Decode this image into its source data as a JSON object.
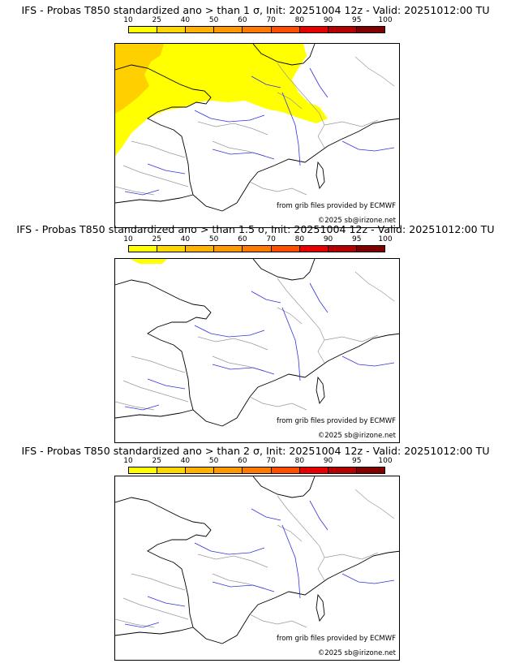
{
  "colorbar": {
    "ticks": [
      "10",
      "25",
      "40",
      "50",
      "60",
      "70",
      "80",
      "90",
      "95",
      "100"
    ],
    "colors": [
      "#ffff00",
      "#ffd700",
      "#ffb300",
      "#ff9900",
      "#ff7a00",
      "#ff4d00",
      "#e60000",
      "#b30000",
      "#800000"
    ]
  },
  "colors": {
    "land_outline": "#000000",
    "borders": "#999999",
    "rivers": "#3333dd"
  },
  "panels": [
    {
      "title": "IFS - Probas T850  standardized ano > than 1 σ, Init: 20251004 12z - Valid: 20251012:00 TU",
      "threshold": "1 σ",
      "probability_levels_present": [
        "10",
        "25"
      ]
    },
    {
      "title": "IFS - Probas T850  standardized ano > than 1.5 σ, Init: 20251004 12z - Valid: 20251012:00 TU",
      "threshold": "1.5 σ",
      "probability_levels_present": [
        "10"
      ]
    },
    {
      "title": "IFS - Probas T850  standardized ano > than 2 σ, Init: 20251004 12z - Valid: 20251012:00 TU",
      "threshold": "2 σ",
      "probability_levels_present": []
    }
  ],
  "credits": {
    "source": "from grib files provided by ECMWF",
    "copyright": "©2025 sb@irizone.net"
  }
}
